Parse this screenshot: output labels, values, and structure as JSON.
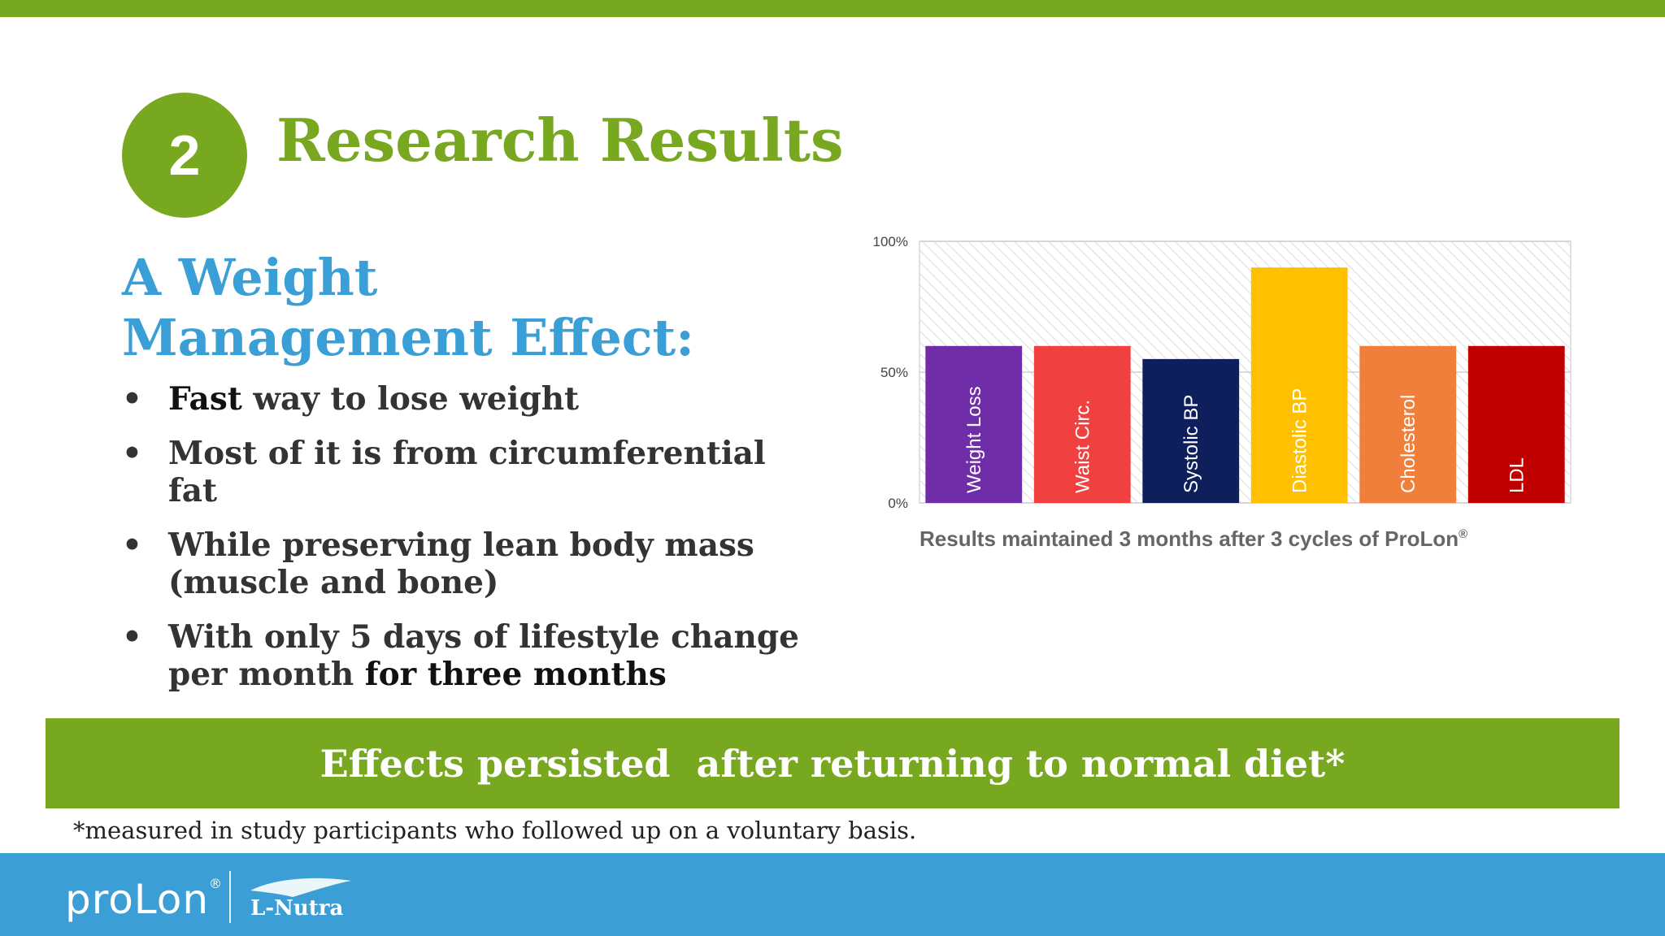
{
  "slide": {
    "number": "2",
    "title": "Research Results",
    "subtitle_lines": [
      "A Weight",
      "Management Effect:"
    ],
    "bullets": [
      {
        "bold": "Fast",
        "rest": " way to lose weight"
      },
      {
        "bold": "",
        "rest": "Most of it is from circumferential fat"
      },
      {
        "bold": "",
        "rest": "While preserving lean body mass (muscle and bone)"
      },
      {
        "bold": "",
        "rest": "With only 5 days of lifestyle change per month",
        "tail_bold": " for three months"
      }
    ],
    "bullet_char": "•",
    "banner": "Effects persisted  after returning to normal diet*",
    "footnote": "*measured in study participants who followed up on a voluntary basis."
  },
  "footer": {
    "brand": "proLon",
    "registered": "®",
    "partner": "L-Nutra"
  },
  "colors": {
    "green": "#78a820",
    "blue": "#3a9fd6",
    "footer_blue": "#3b9fd6"
  },
  "chart_data": {
    "type": "bar",
    "categories": [
      "Weight Loss",
      "Waist Circ.",
      "Systolic BP",
      "Diastolic BP",
      "Cholesterol",
      "LDL"
    ],
    "values": [
      60,
      60,
      55,
      90,
      60,
      60
    ],
    "colors": [
      "#6f2da8",
      "#f04040",
      "#0f1f5c",
      "#ffc000",
      "#f07f3c",
      "#c00000"
    ],
    "ylim": [
      0,
      100
    ],
    "yticks": [
      "0%",
      "50%",
      "100%"
    ],
    "ytick_values": [
      0,
      50,
      100
    ],
    "caption": "Results maintained 3 months after 3 cycles of ProLon",
    "caption_mark": "®",
    "grid": true,
    "background": "hatched"
  }
}
